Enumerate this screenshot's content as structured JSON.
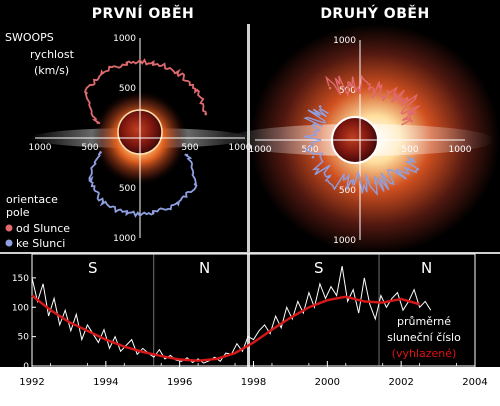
{
  "colors": {
    "away_from_sun": "#e06a70",
    "toward_sun": "#8f9fe0",
    "smoothed": "#d81818",
    "monthly": "#ffffff"
  },
  "panels": [
    {
      "title": "PRVNÍ OBĚH",
      "speed_ticks": [
        "1000",
        "500",
        "500",
        "1000"
      ],
      "speed_ticks_x": [
        "1000",
        "500",
        "500",
        "1000"
      ]
    },
    {
      "title": "DRUHÝ OBĚH",
      "speed_ticks": [
        "1000",
        "500",
        "500",
        "1000"
      ],
      "speed_ticks_x": [
        "1000",
        "500",
        "500",
        "1000"
      ]
    }
  ],
  "legend": {
    "instrument": "SWOOPS",
    "speed_line1": "rychlost",
    "speed_line2": "(km/s)",
    "orient_line1": "orientace",
    "orient_line2": "pole",
    "away": "od Slunce",
    "toward": "ke Slunci"
  },
  "sunspot": {
    "hemi_1": "S",
    "hemi_2": "N",
    "hemi_3": "S",
    "hemi_4": "N",
    "label_line1": "průměrné",
    "label_line2": "sluneční číslo",
    "label_line3": "(vyhlazené)"
  },
  "chart_data": [
    {
      "type": "scatter",
      "title": "PRVNÍ OBĚH",
      "description_units": "km/s",
      "rlim": [
        0,
        1000
      ],
      "series": [
        {
          "name": "od Slunce",
          "color": "#e06a70",
          "points": [
            {
              "angle": 60,
              "speed": 750
            },
            {
              "angle": 80,
              "speed": 760
            },
            {
              "angle": 100,
              "speed": 760
            },
            {
              "angle": 120,
              "speed": 750
            },
            {
              "angle": 140,
              "speed": 700
            },
            {
              "angle": 160,
              "speed": 450
            },
            {
              "angle": 20,
              "speed": 700
            },
            {
              "angle": 40,
              "speed": 740
            }
          ]
        },
        {
          "name": "ke Slunci",
          "color": "#8f9fe0",
          "points": [
            {
              "angle": 200,
              "speed": 420
            },
            {
              "angle": 220,
              "speed": 650
            },
            {
              "angle": 240,
              "speed": 740
            },
            {
              "angle": 260,
              "speed": 760
            },
            {
              "angle": 280,
              "speed": 760
            },
            {
              "angle": 300,
              "speed": 750
            },
            {
              "angle": 320,
              "speed": 720
            },
            {
              "angle": 340,
              "speed": 500
            }
          ]
        }
      ]
    },
    {
      "type": "scatter",
      "title": "DRUHÝ OBĚH",
      "description_units": "km/s",
      "rlim": [
        0,
        1000
      ],
      "series": [
        {
          "name": "od Slunce",
          "color": "#e06a70",
          "points": [
            {
              "angle": 20,
              "speed": 550
            },
            {
              "angle": 40,
              "speed": 620
            },
            {
              "angle": 60,
              "speed": 560
            },
            {
              "angle": 80,
              "speed": 520
            },
            {
              "angle": 100,
              "speed": 560
            },
            {
              "angle": 120,
              "speed": 600
            }
          ]
        },
        {
          "name": "ke Slunci",
          "color": "#8f9fe0",
          "points": [
            {
              "angle": 140,
              "speed": 520
            },
            {
              "angle": 160,
              "speed": 480
            },
            {
              "angle": 200,
              "speed": 500
            },
            {
              "angle": 230,
              "speed": 480
            },
            {
              "angle": 260,
              "speed": 420
            },
            {
              "angle": 290,
              "speed": 460
            },
            {
              "angle": 320,
              "speed": 520
            },
            {
              "angle": 340,
              "speed": 560
            }
          ]
        }
      ]
    },
    {
      "type": "line",
      "xlim": [
        1992,
        2004
      ],
      "ylim": [
        0,
        160
      ],
      "x_ticks": [
        "1992",
        "1994",
        "1996",
        "1998",
        "2000",
        "2002",
        "2004"
      ],
      "y_ticks": [
        "150",
        "100",
        "50",
        "0"
      ],
      "series": [
        {
          "name": "monthly",
          "color": "#ffffff",
          "x": [
            1992.0,
            1992.15,
            1992.3,
            1992.45,
            1992.6,
            1992.75,
            1992.9,
            1993.05,
            1993.2,
            1993.35,
            1993.5,
            1993.65,
            1993.8,
            1993.95,
            1994.1,
            1994.25,
            1994.4,
            1994.55,
            1994.7,
            1994.85,
            1995.0,
            1995.15,
            1995.3,
            1995.45,
            1995.6,
            1995.75,
            1995.9,
            1996.05,
            1996.2,
            1996.35,
            1996.5,
            1996.65,
            1996.8,
            1996.95,
            1997.1,
            1997.25,
            1997.4,
            1997.55,
            1997.7,
            1997.85,
            1998.0,
            1998.15,
            1998.3,
            1998.45,
            1998.6,
            1998.75,
            1998.9,
            1999.05,
            1999.2,
            1999.35,
            1999.5,
            1999.65,
            1999.8,
            1999.95,
            2000.1,
            2000.25,
            2000.4,
            2000.55,
            2000.7,
            2000.85,
            2001.0,
            2001.15,
            2001.3,
            2001.45,
            2001.6,
            2001.75,
            2001.9,
            2002.05,
            2002.2,
            2002.35,
            2002.5,
            2002.65,
            2002.8
          ],
          "y": [
            150,
            110,
            140,
            85,
            115,
            70,
            95,
            60,
            88,
            45,
            70,
            55,
            40,
            62,
            30,
            50,
            25,
            35,
            45,
            20,
            30,
            22,
            15,
            28,
            12,
            18,
            10,
            8,
            14,
            6,
            12,
            5,
            9,
            15,
            8,
            22,
            20,
            38,
            25,
            50,
            45,
            60,
            70,
            55,
            85,
            65,
            100,
            80,
            110,
            90,
            125,
            100,
            140,
            115,
            135,
            120,
            170,
            110,
            130,
            90,
            150,
            105,
            80,
            120,
            100,
            115,
            125,
            95,
            110,
            130,
            100,
            110,
            95
          ]
        },
        {
          "name": "smoothed",
          "color": "#d81818",
          "x": [
            1992.0,
            1992.5,
            1993.0,
            1993.5,
            1994.0,
            1994.5,
            1995.0,
            1995.5,
            1996.0,
            1996.5,
            1997.0,
            1997.5,
            1998.0,
            1998.5,
            1999.0,
            1999.5,
            2000.0,
            2000.5,
            2001.0,
            2001.5,
            2002.0,
            2002.5
          ],
          "y": [
            120,
            95,
            75,
            60,
            45,
            33,
            24,
            17,
            11,
            9,
            12,
            22,
            40,
            62,
            82,
            100,
            112,
            118,
            110,
            108,
            114,
            105
          ]
        }
      ]
    }
  ]
}
